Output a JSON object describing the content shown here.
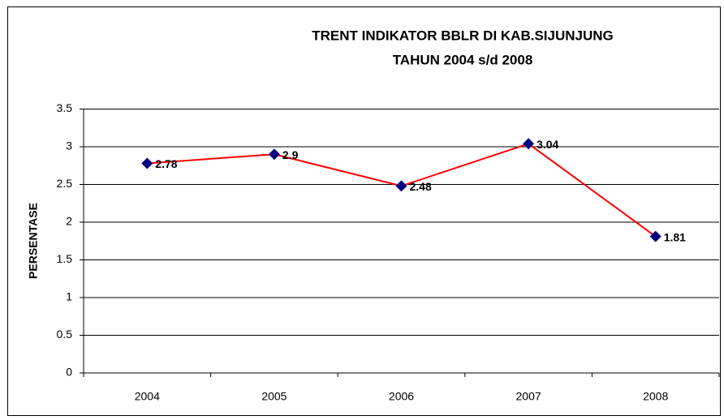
{
  "chart_data": {
    "type": "line",
    "title": [
      "TRENT INDIKATOR BBLR DI KAB.SIJUNJUNG",
      "TAHUN 2004 s/d 2008"
    ],
    "y_label": "PERSENTASE",
    "categories": [
      "2004",
      "2005",
      "2006",
      "2007",
      "2008"
    ],
    "series": [
      {
        "name": "BBLR",
        "color": "#ff0000",
        "marker_color": "#000080",
        "values": [
          2.78,
          2.9,
          2.48,
          3.04,
          1.81
        ]
      }
    ],
    "ylim": [
      0,
      3.5
    ],
    "yticks": [
      0,
      0.5,
      1,
      1.5,
      2,
      2.5,
      3,
      3.5
    ],
    "grid": true
  }
}
